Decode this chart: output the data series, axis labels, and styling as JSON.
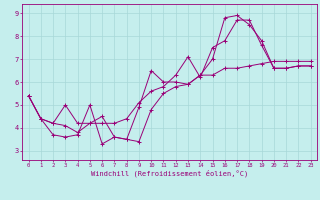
{
  "title": "",
  "xlabel": "Windchill (Refroidissement éolien,°C)",
  "bg_color": "#c5eeed",
  "line_color": "#990077",
  "grid_color": "#a8d8d8",
  "axis_color": "#880088",
  "xlim": [
    -0.5,
    23.5
  ],
  "ylim": [
    2.6,
    9.4
  ],
  "xticks": [
    0,
    1,
    2,
    3,
    4,
    5,
    6,
    7,
    8,
    9,
    10,
    11,
    12,
    13,
    14,
    15,
    16,
    17,
    18,
    19,
    20,
    21,
    22,
    23
  ],
  "yticks": [
    3,
    4,
    5,
    6,
    7,
    8,
    9
  ],
  "lines": [
    {
      "x": [
        0,
        1,
        2,
        3,
        4,
        5,
        6,
        7,
        8,
        9,
        10,
        11,
        12,
        13,
        14,
        15,
        16,
        17,
        18,
        19,
        20,
        21,
        22,
        23
      ],
      "y": [
        5.4,
        4.4,
        3.7,
        3.6,
        3.7,
        5.0,
        3.3,
        3.6,
        3.5,
        4.9,
        6.5,
        6.0,
        6.0,
        5.9,
        6.3,
        7.0,
        8.8,
        8.9,
        8.5,
        7.8,
        6.6,
        6.6,
        6.7,
        6.7
      ]
    },
    {
      "x": [
        0,
        1,
        2,
        3,
        4,
        5,
        6,
        7,
        8,
        9,
        10,
        11,
        12,
        13,
        14,
        15,
        16,
        17,
        18,
        19,
        20,
        21,
        22,
        23
      ],
      "y": [
        5.4,
        4.4,
        4.2,
        5.0,
        4.2,
        4.2,
        4.2,
        4.2,
        4.4,
        5.1,
        5.6,
        5.8,
        6.3,
        7.1,
        6.2,
        7.5,
        7.8,
        8.7,
        8.7,
        7.6,
        6.6,
        6.6,
        6.7,
        6.7
      ]
    },
    {
      "x": [
        0,
        1,
        2,
        3,
        4,
        5,
        6,
        7,
        8,
        9,
        10,
        11,
        12,
        13,
        14,
        15,
        16,
        17,
        18,
        19,
        20,
        21,
        22,
        23
      ],
      "y": [
        5.4,
        4.4,
        4.2,
        4.1,
        3.8,
        4.2,
        4.5,
        3.6,
        3.5,
        3.4,
        4.8,
        5.5,
        5.8,
        5.9,
        6.3,
        6.3,
        6.6,
        6.6,
        6.7,
        6.8,
        6.9,
        6.9,
        6.9,
        6.9
      ]
    }
  ]
}
